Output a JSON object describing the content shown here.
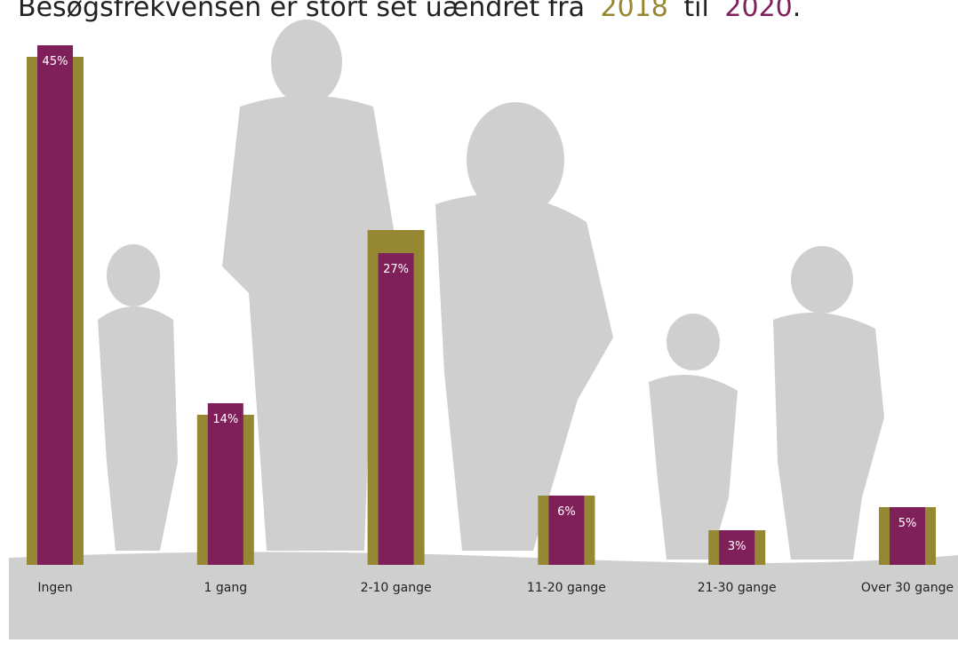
{
  "chart_data": {
    "type": "bar",
    "title_parts": [
      "Besøgsfrekvensen er stort set uændret fra",
      "til",
      "."
    ],
    "categories": [
      "Ingen",
      "1 gang",
      "2-10 gange",
      "11-20 gange",
      "21-30 gange",
      "Over 30 gange"
    ],
    "series": [
      {
        "name": "2018",
        "color": "#968732",
        "values": [
          44,
          13,
          29,
          6,
          3,
          5
        ]
      },
      {
        "name": "2020",
        "color": "#80205a",
        "values": [
          45,
          14,
          27,
          6,
          3,
          5
        ],
        "value_labels": [
          "45%",
          "14%",
          "27%",
          "6%",
          "3%",
          "5%"
        ]
      }
    ],
    "ylim": [
      0,
      45
    ]
  }
}
